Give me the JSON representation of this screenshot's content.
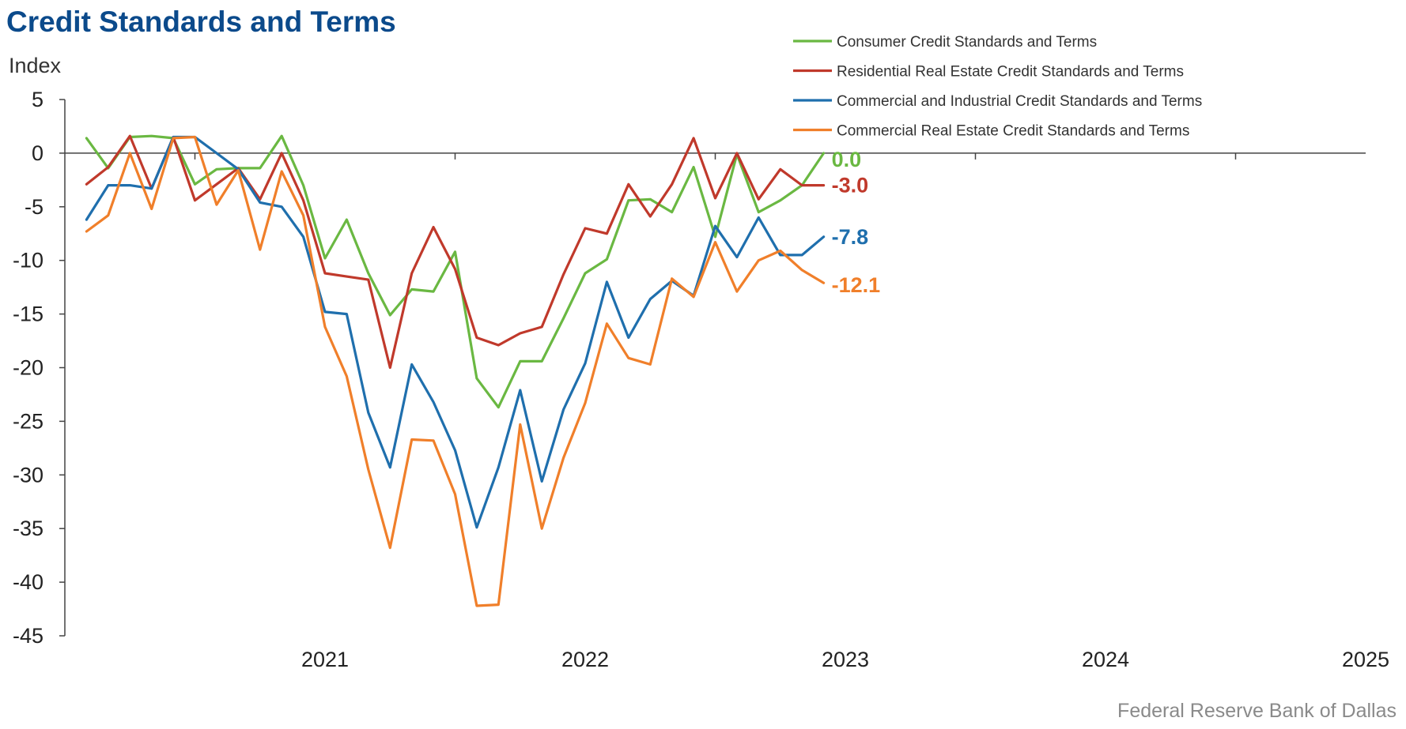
{
  "chart_data": {
    "type": "line",
    "title": "Credit Standards and Terms",
    "ylabel": "Index",
    "ylim": [
      -45,
      5
    ],
    "yticks": [
      5,
      0,
      -5,
      -10,
      -15,
      -20,
      -25,
      -30,
      -35,
      -40,
      -45
    ],
    "xlim": [
      "2020-07",
      "2025-07"
    ],
    "xtick_labels": [
      "2021",
      "2022",
      "2023",
      "2024",
      "2025"
    ],
    "x": [
      "2020-07",
      "2020-08",
      "2020-09",
      "2020-10",
      "2020-11",
      "2020-12",
      "2021-01",
      "2021-02",
      "2021-03",
      "2021-04",
      "2021-05",
      "2021-06",
      "2021-07",
      "2021-08",
      "2021-09",
      "2021-10",
      "2021-11",
      "2021-12",
      "2022-01",
      "2022-02",
      "2022-03",
      "2022-04",
      "2022-05",
      "2022-06",
      "2022-07",
      "2022-08",
      "2022-09",
      "2022-10",
      "2022-11",
      "2022-12",
      "2023-01",
      "2023-02",
      "2023-03",
      "2023-04",
      "2023-05",
      "2023-06",
      "2023-07",
      "2023-08",
      "2023-09",
      "2023-10",
      "2023-11",
      "2023-12",
      "2024-01",
      "2024-02",
      "2024-03",
      "2024-04",
      "2024-05",
      "2024-06",
      "2024-07",
      "2024-08",
      "2024-09",
      "2024-10",
      "2024-11",
      "2024-12",
      "2025-01",
      "2025-02",
      "2025-03",
      "2025-04",
      "2025-05",
      "2025-06",
      "2025-07"
    ],
    "series": [
      {
        "name": "Consumer Credit Standards and Terms",
        "color": "#6ab842",
        "end_label": "0.0",
        "points": [
          [
            "2020-08",
            1.4
          ],
          [
            "2020-09",
            -1.4
          ],
          [
            "2020-10",
            1.5
          ],
          [
            "2020-11",
            1.6
          ],
          [
            "2020-12",
            1.4
          ],
          [
            "2021-01",
            -2.9
          ],
          [
            "2021-02",
            -1.5
          ],
          [
            "2021-03",
            -1.4
          ],
          [
            "2021-04",
            -1.4
          ],
          [
            "2021-05",
            1.6
          ],
          [
            "2021-06",
            -3.0
          ],
          [
            "2021-07",
            -9.8
          ],
          [
            "2021-08",
            -6.2
          ],
          [
            "2021-09",
            -11.2
          ],
          [
            "2021-10",
            -15.1
          ],
          [
            "2021-11",
            -12.7
          ],
          [
            "2021-12",
            -12.9
          ],
          [
            "2022-01",
            -9.2
          ],
          [
            "2022-02",
            -21.0
          ],
          [
            "2022-03",
            -23.7
          ],
          [
            "2022-04",
            -19.4
          ],
          [
            "2022-05",
            -19.4
          ],
          [
            "2022-06",
            -15.4
          ],
          [
            "2022-07",
            -11.2
          ],
          [
            "2022-08",
            -9.9
          ],
          [
            "2022-09",
            -4.4
          ],
          [
            "2022-10",
            -4.3
          ],
          [
            "2022-11",
            -5.5
          ],
          [
            "2022-12",
            -1.3
          ],
          [
            "2023-01",
            -7.8
          ],
          [
            "2023-02",
            -0.1
          ],
          [
            "2023-03",
            -5.5
          ],
          [
            "2023-04",
            -4.4
          ],
          [
            "2023-05",
            -3.0
          ],
          [
            "2023-06",
            0.0
          ]
        ]
      },
      {
        "name": "Residential Real Estate Credit Standards and Terms",
        "color": "#c0392b",
        "end_label": "-3.0",
        "points": [
          [
            "2020-08",
            -2.9
          ],
          [
            "2020-09",
            -1.3
          ],
          [
            "2020-10",
            1.6
          ],
          [
            "2020-11",
            -3.3
          ],
          [
            "2020-12",
            1.5
          ],
          [
            "2021-01",
            -4.4
          ],
          [
            "2021-02",
            -2.9
          ],
          [
            "2021-03",
            -1.4
          ],
          [
            "2021-04",
            -4.3
          ],
          [
            "2021-05",
            0.0
          ],
          [
            "2021-06",
            -4.4
          ],
          [
            "2021-07",
            -11.2
          ],
          [
            "2021-08",
            -11.5
          ],
          [
            "2021-09",
            -11.8
          ],
          [
            "2021-10",
            -20.0
          ],
          [
            "2021-11",
            -11.2
          ],
          [
            "2021-12",
            -6.9
          ],
          [
            "2022-01",
            -10.8
          ],
          [
            "2022-02",
            -17.2
          ],
          [
            "2022-03",
            -17.9
          ],
          [
            "2022-04",
            -16.8
          ],
          [
            "2022-05",
            -16.2
          ],
          [
            "2022-06",
            -11.3
          ],
          [
            "2022-07",
            -7.0
          ],
          [
            "2022-08",
            -7.5
          ],
          [
            "2022-09",
            -2.9
          ],
          [
            "2022-10",
            -5.9
          ],
          [
            "2022-11",
            -2.9
          ],
          [
            "2022-12",
            1.4
          ],
          [
            "2023-01",
            -4.2
          ],
          [
            "2023-02",
            0.0
          ],
          [
            "2023-03",
            -4.3
          ],
          [
            "2023-04",
            -1.5
          ],
          [
            "2023-05",
            -3.0
          ],
          [
            "2023-06",
            -3.0
          ]
        ]
      },
      {
        "name": "Commercial and Industrial Credit Standards and Terms",
        "color": "#1f6fad",
        "end_label": "-7.8",
        "points": [
          [
            "2020-08",
            -6.2
          ],
          [
            "2020-09",
            -3.0
          ],
          [
            "2020-10",
            -3.0
          ],
          [
            "2020-11",
            -3.3
          ],
          [
            "2020-12",
            1.5
          ],
          [
            "2021-01",
            1.5
          ],
          [
            "2021-02",
            0.0
          ],
          [
            "2021-03",
            -1.5
          ],
          [
            "2021-04",
            -4.6
          ],
          [
            "2021-05",
            -5.0
          ],
          [
            "2021-06",
            -7.8
          ],
          [
            "2021-07",
            -14.8
          ],
          [
            "2021-08",
            -15.0
          ],
          [
            "2021-09",
            -24.2
          ],
          [
            "2021-10",
            -29.3
          ],
          [
            "2021-11",
            -19.7
          ],
          [
            "2021-12",
            -23.2
          ],
          [
            "2022-01",
            -27.7
          ],
          [
            "2022-02",
            -34.9
          ],
          [
            "2022-03",
            -29.3
          ],
          [
            "2022-04",
            -22.1
          ],
          [
            "2022-05",
            -30.6
          ],
          [
            "2022-06",
            -23.9
          ],
          [
            "2022-07",
            -19.6
          ],
          [
            "2022-08",
            -12.0
          ],
          [
            "2022-09",
            -17.2
          ],
          [
            "2022-10",
            -13.6
          ],
          [
            "2022-11",
            -11.9
          ],
          [
            "2022-12",
            -13.3
          ],
          [
            "2023-01",
            -6.8
          ],
          [
            "2023-02",
            -9.7
          ],
          [
            "2023-03",
            -6.0
          ],
          [
            "2023-04",
            -9.5
          ],
          [
            "2023-05",
            -9.5
          ],
          [
            "2023-06",
            -7.8
          ]
        ]
      },
      {
        "name": "Commercial Real Estate Credit Standards and Terms",
        "color": "#f07f2a",
        "end_label": "-12.1",
        "points": [
          [
            "2020-08",
            -7.3
          ],
          [
            "2020-09",
            -5.8
          ],
          [
            "2020-10",
            0.0
          ],
          [
            "2020-11",
            -5.2
          ],
          [
            "2020-12",
            1.4
          ],
          [
            "2021-01",
            1.5
          ],
          [
            "2021-02",
            -4.8
          ],
          [
            "2021-03",
            -1.6
          ],
          [
            "2021-04",
            -9.0
          ],
          [
            "2021-05",
            -1.7
          ],
          [
            "2021-06",
            -5.8
          ],
          [
            "2021-07",
            -16.2
          ],
          [
            "2021-08",
            -20.8
          ],
          [
            "2021-09",
            -29.5
          ],
          [
            "2021-10",
            -36.8
          ],
          [
            "2021-11",
            -26.7
          ],
          [
            "2021-12",
            -26.8
          ],
          [
            "2022-01",
            -31.8
          ],
          [
            "2022-02",
            -42.2
          ],
          [
            "2022-03",
            -42.1
          ],
          [
            "2022-04",
            -25.3
          ],
          [
            "2022-05",
            -35.0
          ],
          [
            "2022-06",
            -28.4
          ],
          [
            "2022-07",
            -23.3
          ],
          [
            "2022-08",
            -15.9
          ],
          [
            "2022-09",
            -19.1
          ],
          [
            "2022-10",
            -19.7
          ],
          [
            "2022-11",
            -11.7
          ],
          [
            "2022-12",
            -13.4
          ],
          [
            "2023-01",
            -8.3
          ],
          [
            "2023-02",
            -12.9
          ],
          [
            "2023-03",
            -10.0
          ],
          [
            "2023-04",
            -9.1
          ],
          [
            "2023-05",
            -10.9
          ],
          [
            "2023-06",
            -12.1
          ]
        ]
      }
    ]
  },
  "source": "Federal Reserve Bank of Dallas"
}
